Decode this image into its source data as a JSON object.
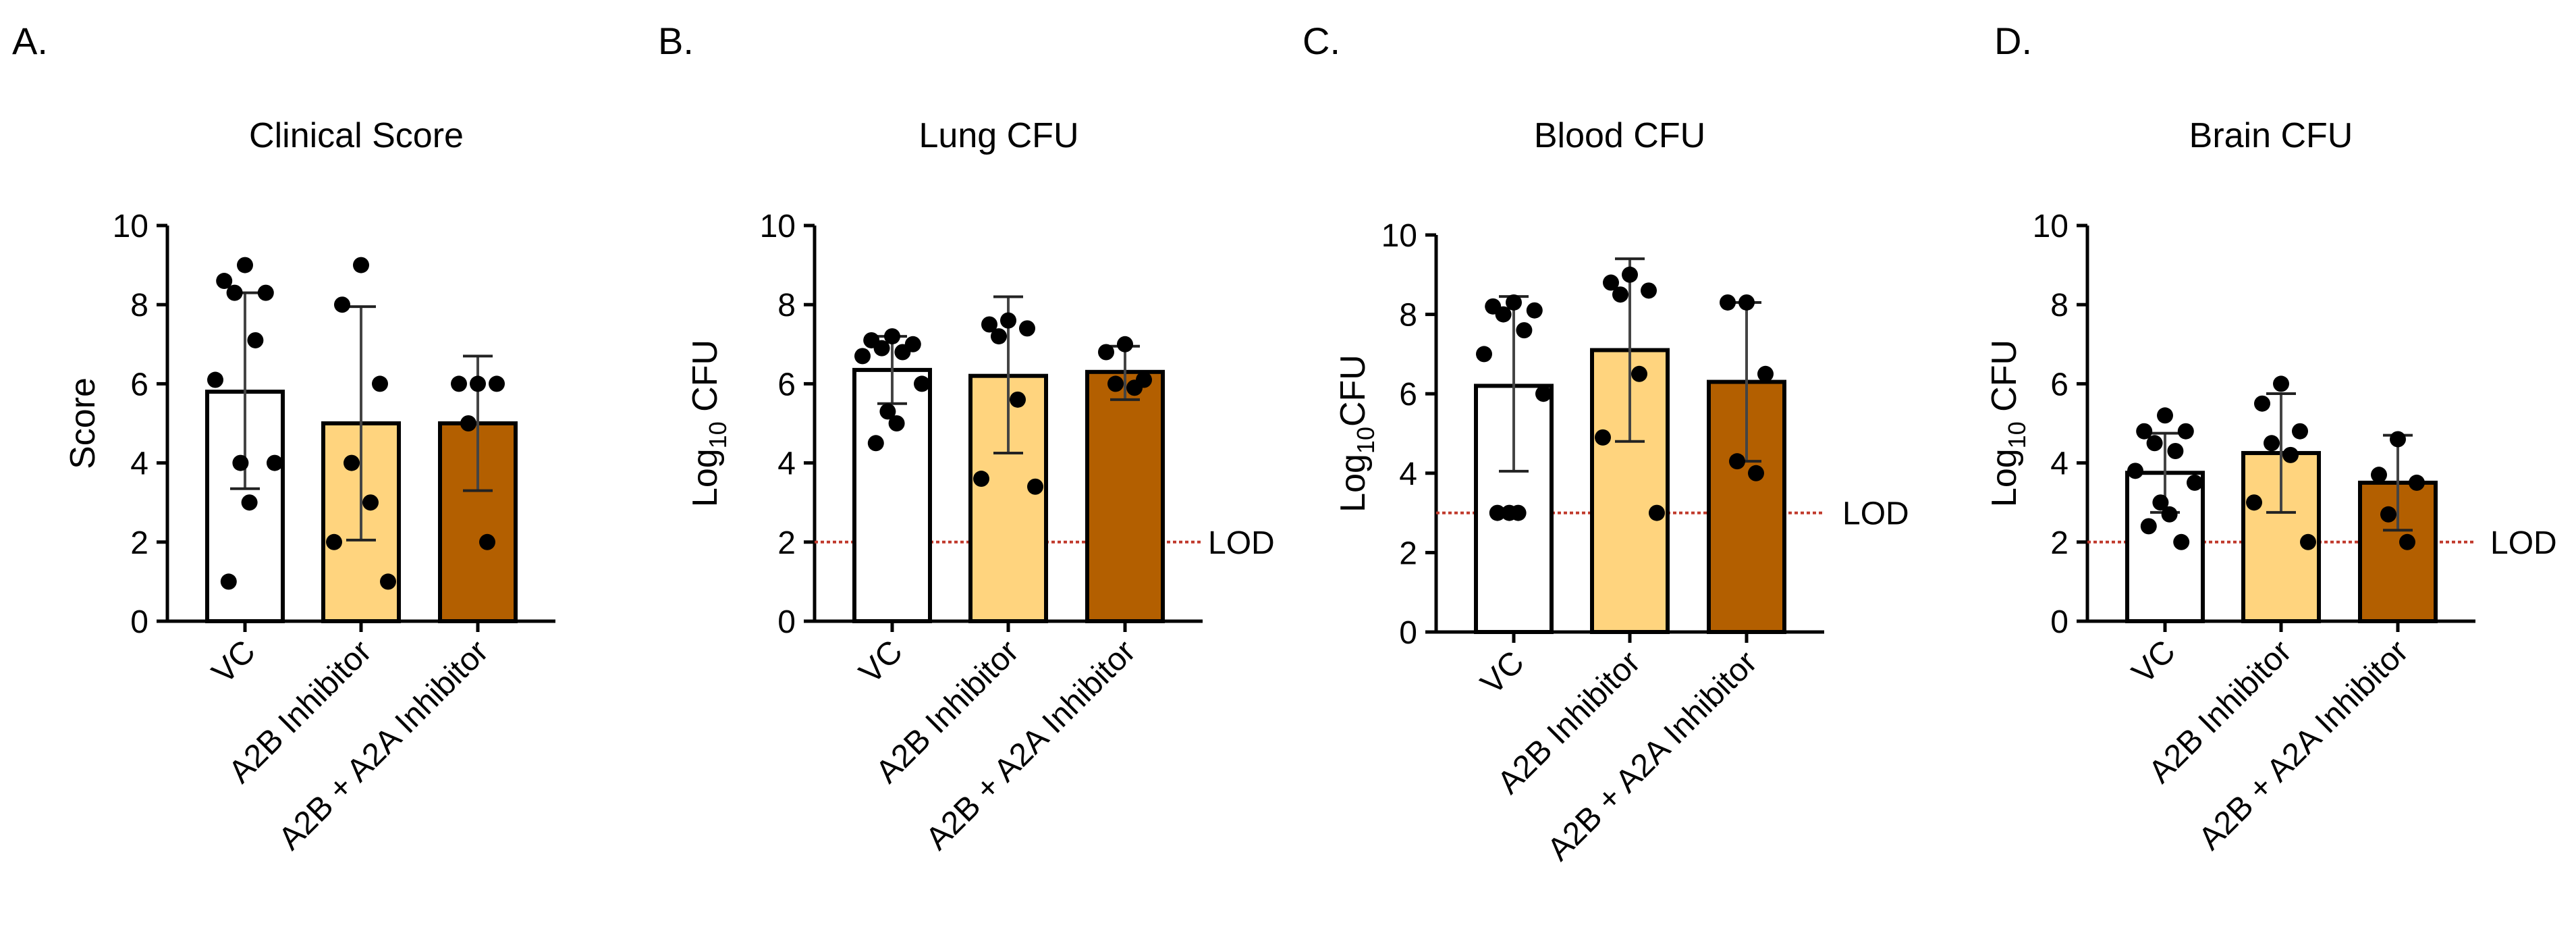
{
  "colors": {
    "bars": [
      "#ffffff",
      "#ffd47e",
      "#b35f00"
    ],
    "lod_line": "#c0392b",
    "points": "#000000",
    "error_bar": "#000000"
  },
  "chart_data": [
    {
      "panel": "A.",
      "type": "bar",
      "title": "Clinical Score",
      "ylabel": "Score",
      "ylabel_sub": "",
      "ylabel_tail": "",
      "ylim": [
        0,
        10
      ],
      "yticks": [
        0,
        2,
        4,
        6,
        8,
        10
      ],
      "categories": [
        "VC",
        "A2B Inhibitor",
        "A2B + A2A Inhibitor"
      ],
      "values": [
        5.8,
        5.0,
        5.0
      ],
      "error_low": [
        3.35,
        2.05,
        3.3
      ],
      "error_high": [
        8.3,
        7.95,
        6.7
      ],
      "points": [
        [
          9,
          8.6,
          8.3,
          8.3,
          7.1,
          6.1,
          4.0,
          4.0,
          3.0,
          1.0
        ],
        [
          9,
          8.0,
          6.0,
          4.0,
          3.0,
          2.0,
          1.0
        ],
        [
          6,
          6,
          6,
          5,
          2
        ]
      ],
      "lod": null,
      "lod_label": ""
    },
    {
      "panel": "B.",
      "type": "bar",
      "title": "Lung CFU",
      "ylabel": "Log",
      "ylabel_sub": "10",
      "ylabel_tail": " CFU",
      "ylim": [
        0,
        10
      ],
      "yticks": [
        0,
        2,
        4,
        6,
        8,
        10
      ],
      "categories": [
        "VC",
        "A2B Inhibitor",
        "A2B + A2A Inhibitor"
      ],
      "values": [
        6.35,
        6.2,
        6.3
      ],
      "error_low": [
        5.5,
        4.25,
        5.6
      ],
      "error_high": [
        7.2,
        8.2,
        6.95
      ],
      "points": [
        [
          7.2,
          7.1,
          7.0,
          6.9,
          6.8,
          6.7,
          6.0,
          5.3,
          5.0,
          4.5
        ],
        [
          7.6,
          7.5,
          7.4,
          7.2,
          5.6,
          3.6,
          3.4
        ],
        [
          7.0,
          6.8,
          6.1,
          6.0,
          5.9
        ]
      ],
      "lod": 2,
      "lod_label": "LOD"
    },
    {
      "panel": "C.",
      "type": "bar",
      "title": "Blood CFU",
      "ylabel": "Log",
      "ylabel_sub": "10",
      "ylabel_tail": "CFU",
      "ylim": [
        0,
        10
      ],
      "yticks": [
        0,
        2,
        4,
        6,
        8,
        10
      ],
      "categories": [
        "VC",
        "A2B Inhibitor",
        "A2B + A2A Inhibitor"
      ],
      "values": [
        6.2,
        7.1,
        6.3
      ],
      "error_low": [
        4.05,
        4.8,
        4.3
      ],
      "error_high": [
        8.45,
        9.4,
        8.3
      ],
      "points": [
        [
          8.3,
          8.2,
          8.1,
          8.0,
          7.6,
          7.0,
          6.0,
          3.0,
          3.0,
          3.0
        ],
        [
          9.0,
          8.8,
          8.6,
          8.5,
          6.5,
          4.9,
          3.0
        ],
        [
          8.3,
          8.3,
          6.5,
          4.3,
          4.0
        ]
      ],
      "lod": 3,
      "lod_label": "LOD"
    },
    {
      "panel": "D.",
      "type": "bar",
      "title": "Brain CFU",
      "ylabel": "Log",
      "ylabel_sub": "10",
      "ylabel_tail": " CFU",
      "ylim": [
        0,
        10
      ],
      "yticks": [
        0,
        2,
        4,
        6,
        8,
        10
      ],
      "categories": [
        "VC",
        "A2B Inhibitor",
        "A2B + A2A Inhibitor"
      ],
      "values": [
        3.75,
        4.25,
        3.5
      ],
      "error_low": [
        2.75,
        2.75,
        2.3
      ],
      "error_high": [
        4.75,
        5.75,
        4.7
      ],
      "points": [
        [
          5.2,
          4.8,
          4.8,
          4.5,
          4.3,
          3.8,
          3.5,
          3.0,
          2.7,
          2.4,
          2.0
        ],
        [
          6.0,
          5.5,
          4.8,
          4.5,
          4.2,
          3.0,
          2.0
        ],
        [
          4.6,
          3.7,
          3.5,
          2.7,
          2.0
        ]
      ],
      "lod": 2,
      "lod_label": "LOD"
    }
  ]
}
